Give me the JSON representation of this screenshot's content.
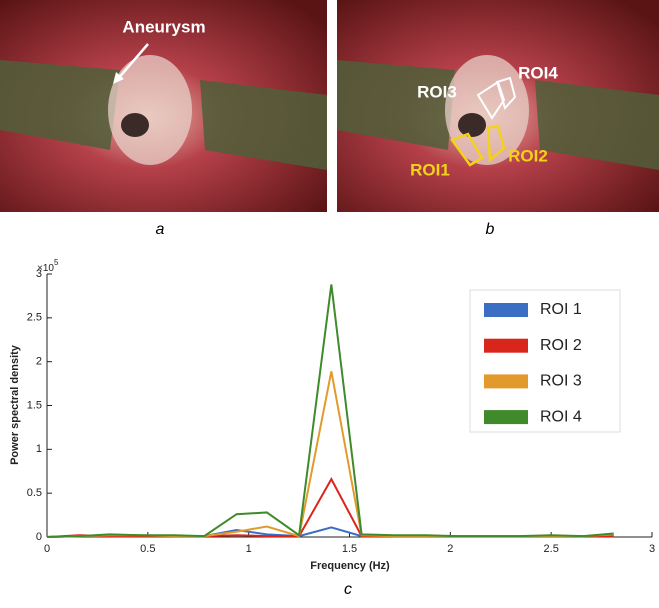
{
  "panels": {
    "a": {
      "label": "a",
      "annotation": "Aneurysm"
    },
    "b": {
      "label": "b",
      "annotations": [
        "ROI3",
        "ROI4",
        "ROI1",
        "ROI2"
      ]
    }
  },
  "chart_data": {
    "type": "line",
    "panel_label": "c",
    "x_label": "Frequency (Hz)",
    "y_label": "Power spectral density",
    "y_multiplier": {
      "base": "×10",
      "exponent": "5"
    },
    "x": [
      0,
      0.16,
      0.31,
      0.47,
      0.63,
      0.78,
      0.94,
      1.09,
      1.25,
      1.41,
      1.56,
      1.72,
      1.88,
      2.03,
      2.19,
      2.34,
      2.5,
      2.66,
      2.81
    ],
    "series": [
      {
        "name": "ROI 1",
        "color": "#3a6fc4",
        "values": [
          0,
          0.01,
          0.01,
          0.01,
          0.01,
          0.01,
          0.08,
          0.03,
          0.01,
          0.11,
          0.01,
          0.01,
          0.01,
          0.01,
          0.01,
          0.01,
          0.01,
          0.01,
          0.01
        ]
      },
      {
        "name": "ROI 2",
        "color": "#d9261c",
        "values": [
          0,
          0.02,
          0.01,
          0.01,
          0.01,
          0.01,
          0.02,
          0.01,
          0.01,
          0.66,
          0.01,
          0.01,
          0.01,
          0.01,
          0.01,
          0.01,
          0.01,
          0.01,
          0.01
        ]
      },
      {
        "name": "ROI 3",
        "color": "#e39a2d",
        "values": [
          0,
          0.01,
          0.02,
          0.02,
          0.01,
          0.01,
          0.06,
          0.12,
          0.01,
          1.89,
          0.02,
          0.01,
          0.01,
          0.01,
          0.01,
          0.01,
          0.01,
          0.01,
          0.03
        ]
      },
      {
        "name": "ROI 4",
        "color": "#3f8a2b",
        "values": [
          0,
          0.01,
          0.03,
          0.02,
          0.02,
          0.01,
          0.26,
          0.28,
          0.02,
          2.88,
          0.03,
          0.02,
          0.02,
          0.01,
          0.01,
          0.01,
          0.02,
          0.01,
          0.04
        ]
      }
    ],
    "xlim": [
      0,
      3
    ],
    "xticks": [
      0,
      0.5,
      1,
      1.5,
      2,
      2.5,
      3
    ],
    "ylim": [
      0,
      3
    ],
    "yticks": [
      0,
      0.5,
      1,
      1.5,
      2,
      2.5,
      3
    ],
    "legend": "upper right"
  }
}
